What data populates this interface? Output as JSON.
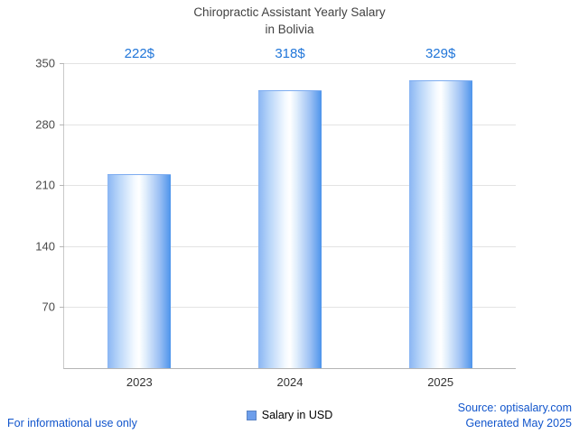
{
  "title": {
    "line1": "Chiropractic Assistant Yearly Salary",
    "line2": "in Bolivia"
  },
  "chart_data": {
    "type": "bar",
    "title": "Chiropractic Assistant Yearly Salary in Bolivia",
    "categories": [
      "2023",
      "2024",
      "2025"
    ],
    "values": [
      222,
      318,
      329
    ],
    "value_labels": [
      "222$",
      "318$",
      "329$"
    ],
    "xlabel": "",
    "ylabel": "",
    "ylim": [
      0,
      350
    ],
    "yticks": [
      70,
      140,
      210,
      280,
      350
    ],
    "grid": true,
    "legend": {
      "label": "Salary in USD",
      "position": "bottom"
    },
    "series_color": "#6d9eeb",
    "value_label_color": "#2176d9",
    "bar_gradient_edges": [
      "#8ab6f3",
      "#ffffff",
      "#4d94eb"
    ]
  },
  "footer": {
    "left_note": "For informational use only",
    "source": "Source: optisalary.com",
    "generated": "Generated May 2025"
  },
  "colors": {
    "title_text": "#424242",
    "axis_text": "#4a4a4a",
    "gridline": "#e3e3e3",
    "link_blue": "#1155cc"
  }
}
